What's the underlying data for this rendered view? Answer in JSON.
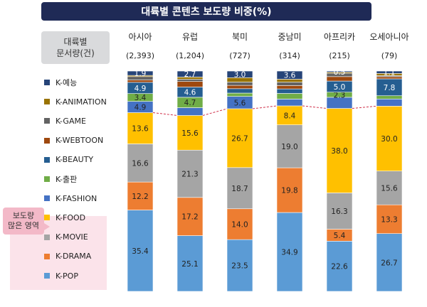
{
  "title": "대륙별 콘텐츠 보도량 비중(%)",
  "header_label": [
    "대륙별",
    "문서량(건)"
  ],
  "callout": [
    "보도량",
    "많은 영역"
  ],
  "colors": {
    "K-POP": "#5b9bd5",
    "K-DRAMA": "#ed7d31",
    "K-MOVIE": "#a5a5a5",
    "K-FOOD": "#ffc000",
    "K-FASHION": "#4472c4",
    "K-출판": "#70ad47",
    "K-BEAUTY": "#255e91",
    "K-WEBTOON": "#9e480e",
    "K-GAME": "#636363",
    "K-ANIMATION": "#997300",
    "K-예능": "#264478"
  },
  "chart_data": {
    "type": "bar",
    "stacked": true,
    "normalized_100": true,
    "title": "대륙별 콘텐츠 보도량 비중(%)",
    "categories": [
      "아시아",
      "유럽",
      "북미",
      "중남미",
      "아프리카",
      "오세아니아"
    ],
    "doc_counts": [
      "(2,393)",
      "(1,204)",
      "(727)",
      "(314)",
      "(215)",
      "(79)"
    ],
    "legend": [
      "K-예능",
      "K-ANIMATION",
      "K-GAME",
      "K-WEBTOON",
      "K-BEAUTY",
      "K-출판",
      "K-FASHION",
      "K-FOOD",
      "K-MOVIE",
      "K-DRAMA",
      "K-POP"
    ],
    "series": [
      {
        "name": "K-POP",
        "values": [
          35.4,
          25.1,
          23.5,
          34.9,
          22.6,
          26.7
        ],
        "labels": [
          "35.4",
          "25.1",
          "23.5",
          "34.9",
          "22.6",
          "26.7"
        ]
      },
      {
        "name": "K-DRAMA",
        "values": [
          12.2,
          17.2,
          14.0,
          19.8,
          5.4,
          13.3
        ],
        "labels": [
          "12.2",
          "17.2",
          "14.0",
          "19.8",
          "5.4",
          "13.3"
        ]
      },
      {
        "name": "K-MOVIE",
        "values": [
          16.6,
          21.3,
          18.7,
          19.0,
          16.3,
          15.6
        ],
        "labels": [
          "16.6",
          "21.3",
          "18.7",
          "19.0",
          "16.3",
          "15.6"
        ]
      },
      {
        "name": "K-FOOD",
        "values": [
          13.6,
          15.6,
          26.7,
          8.4,
          38.0,
          30.0
        ],
        "labels": [
          "13.6",
          "15.6",
          "26.7",
          "8.4",
          "38.0",
          "30.0"
        ]
      },
      {
        "name": "K-FASHION",
        "values": [
          4.9,
          3.5,
          5.6,
          3.0,
          5.0,
          3.3
        ],
        "labels": [
          "4.9",
          "",
          "5.6",
          "",
          "",
          ""
        ]
      },
      {
        "name": "K-출판",
        "values": [
          3.4,
          4.7,
          1.5,
          2.5,
          2.3,
          1.5
        ],
        "labels": [
          "3.4",
          "4.7",
          "",
          "",
          "2.3",
          ""
        ]
      },
      {
        "name": "K-BEAUTY",
        "values": [
          4.9,
          4.6,
          2.0,
          2.0,
          5.0,
          7.8
        ],
        "labels": [
          "4.9",
          "4.6",
          "",
          "",
          "5.0",
          "7.8"
        ]
      },
      {
        "name": "K-WEBTOON",
        "values": [
          1.0,
          2.5,
          1.5,
          1.5,
          2.0,
          1.0
        ],
        "labels": [
          "",
          "",
          "",
          "",
          "",
          ""
        ]
      },
      {
        "name": "K-GAME",
        "values": [
          1.5,
          1.0,
          1.5,
          1.5,
          1.5,
          0.5
        ],
        "labels": [
          "",
          "",
          "",
          "",
          "",
          ""
        ]
      },
      {
        "name": "K-ANIMATION",
        "values": [
          0.5,
          1.0,
          2.0,
          1.3,
          0.5,
          1.0
        ],
        "labels": [
          "",
          "",
          "",
          "",
          "",
          ""
        ]
      },
      {
        "name": "K-예능",
        "values": [
          1.9,
          2.7,
          3.0,
          3.6,
          0.5,
          1.1
        ],
        "labels": [
          "1.9",
          "2.7",
          "3.0",
          "3.6",
          "0.5",
          "1.1"
        ]
      }
    ],
    "ylim": [
      0,
      100
    ]
  }
}
